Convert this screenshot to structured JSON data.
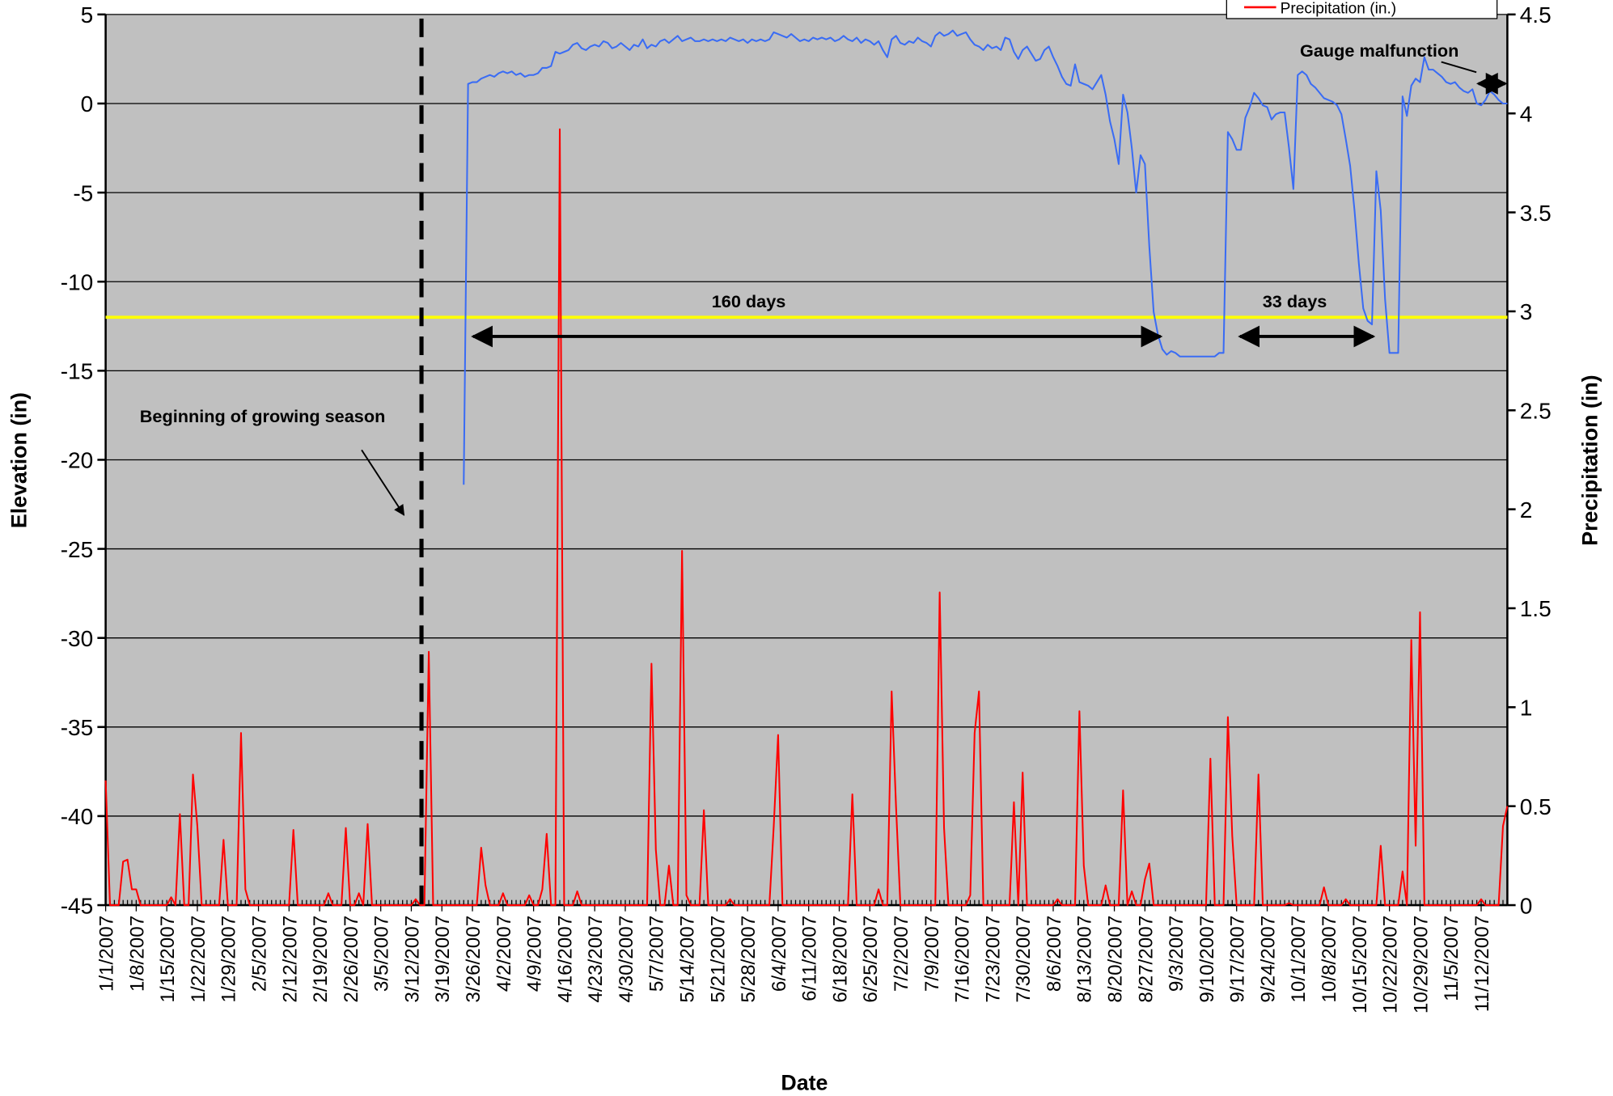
{
  "chart_data": {
    "type": "line",
    "x_label": "Date",
    "y_label": "Elevation (in)",
    "y2_label": "Precipitation (in)",
    "categories": [
      "1/1/2007",
      null,
      null,
      null,
      null,
      null,
      null,
      "1/8/2007",
      null,
      null,
      null,
      null,
      null,
      null,
      "1/15/2007",
      null,
      null,
      null,
      null,
      null,
      null,
      "1/22/2007",
      null,
      null,
      null,
      null,
      null,
      null,
      "1/29/2007",
      null,
      null,
      null,
      null,
      null,
      null,
      "2/5/2007",
      null,
      null,
      null,
      null,
      null,
      null,
      "2/12/2007",
      null,
      null,
      null,
      null,
      null,
      null,
      "2/19/2007",
      null,
      null,
      null,
      null,
      null,
      null,
      "2/26/2007",
      null,
      null,
      null,
      null,
      null,
      null,
      "3/5/2007",
      null,
      null,
      null,
      null,
      null,
      null,
      "3/12/2007",
      null,
      null,
      null,
      null,
      null,
      null,
      "3/19/2007",
      null,
      null,
      null,
      null,
      null,
      null,
      "3/26/2007",
      null,
      null,
      null,
      null,
      null,
      null,
      "4/2/2007",
      null,
      null,
      null,
      null,
      null,
      null,
      "4/9/2007",
      null,
      null,
      null,
      null,
      null,
      null,
      "4/16/2007",
      null,
      null,
      null,
      null,
      null,
      null,
      "4/23/2007",
      null,
      null,
      null,
      null,
      null,
      null,
      "4/30/2007",
      null,
      null,
      null,
      null,
      null,
      null,
      "5/7/2007",
      null,
      null,
      null,
      null,
      null,
      null,
      "5/14/2007",
      null,
      null,
      null,
      null,
      null,
      null,
      "5/21/2007",
      null,
      null,
      null,
      null,
      null,
      null,
      "5/28/2007",
      null,
      null,
      null,
      null,
      null,
      null,
      "6/4/2007",
      null,
      null,
      null,
      null,
      null,
      null,
      "6/11/2007",
      null,
      null,
      null,
      null,
      null,
      null,
      "6/18/2007",
      null,
      null,
      null,
      null,
      null,
      null,
      "6/25/2007",
      null,
      null,
      null,
      null,
      null,
      null,
      "7/2/2007",
      null,
      null,
      null,
      null,
      null,
      null,
      "7/9/2007",
      null,
      null,
      null,
      null,
      null,
      null,
      "7/16/2007",
      null,
      null,
      null,
      null,
      null,
      null,
      "7/23/2007",
      null,
      null,
      null,
      null,
      null,
      null,
      "7/30/2007",
      null,
      null,
      null,
      null,
      null,
      null,
      "8/6/2007",
      null,
      null,
      null,
      null,
      null,
      null,
      "8/13/2007",
      null,
      null,
      null,
      null,
      null,
      null,
      "8/20/2007",
      null,
      null,
      null,
      null,
      null,
      null,
      "8/27/2007",
      null,
      null,
      null,
      null,
      null,
      null,
      "9/3/2007",
      null,
      null,
      null,
      null,
      null,
      null,
      "9/10/2007",
      null,
      null,
      null,
      null,
      null,
      null,
      "9/17/2007",
      null,
      null,
      null,
      null,
      null,
      null,
      "9/24/2007",
      null,
      null,
      null,
      null,
      null,
      null,
      "10/1/2007",
      null,
      null,
      null,
      null,
      null,
      null,
      "10/8/2007",
      null,
      null,
      null,
      null,
      null,
      null,
      "10/15/2007",
      null,
      null,
      null,
      null,
      null,
      null,
      "10/22/2007",
      null,
      null,
      null,
      null,
      null,
      null,
      "10/29/2007",
      null,
      null,
      null,
      null,
      null,
      null,
      "11/5/2007",
      null,
      null,
      null,
      null,
      null,
      null,
      "11/12/2007",
      null,
      null,
      null,
      null,
      null,
      null
    ],
    "series": [
      {
        "color": "#3a6cf4",
        "values": [
          null,
          null,
          null,
          null,
          null,
          null,
          null,
          null,
          null,
          null,
          null,
          null,
          null,
          null,
          null,
          null,
          null,
          null,
          null,
          null,
          null,
          null,
          null,
          null,
          null,
          null,
          null,
          null,
          null,
          null,
          null,
          null,
          null,
          null,
          null,
          null,
          null,
          null,
          null,
          null,
          null,
          null,
          null,
          null,
          null,
          null,
          null,
          null,
          null,
          null,
          null,
          null,
          null,
          null,
          null,
          null,
          null,
          null,
          null,
          null,
          null,
          null,
          null,
          null,
          null,
          null,
          null,
          null,
          null,
          null,
          null,
          null,
          null,
          null,
          null,
          null,
          null,
          null,
          null,
          null,
          null,
          null,
          -21.4,
          1.1,
          1.2,
          1.2,
          1.4,
          1.5,
          1.6,
          1.5,
          1.7,
          1.8,
          1.7,
          1.8,
          1.6,
          1.7,
          1.5,
          1.6,
          1.6,
          1.7,
          2.0,
          2.0,
          2.1,
          2.9,
          2.8,
          2.9,
          3.0,
          3.3,
          3.4,
          3.1,
          3.0,
          3.2,
          3.3,
          3.2,
          3.5,
          3.4,
          3.1,
          3.2,
          3.4,
          3.2,
          3.0,
          3.3,
          3.2,
          3.6,
          3.1,
          3.3,
          3.2,
          3.5,
          3.6,
          3.4,
          3.6,
          3.8,
          3.5,
          3.6,
          3.7,
          3.5,
          3.5,
          3.6,
          3.5,
          3.6,
          3.5,
          3.6,
          3.5,
          3.7,
          3.6,
          3.5,
          3.6,
          3.4,
          3.6,
          3.5,
          3.6,
          3.5,
          3.6,
          4.0,
          3.9,
          3.8,
          3.7,
          3.9,
          3.7,
          3.5,
          3.6,
          3.5,
          3.7,
          3.6,
          3.7,
          3.6,
          3.7,
          3.5,
          3.6,
          3.8,
          3.6,
          3.5,
          3.7,
          3.4,
          3.6,
          3.5,
          3.3,
          3.5,
          3.0,
          2.6,
          3.6,
          3.8,
          3.4,
          3.3,
          3.5,
          3.4,
          3.7,
          3.5,
          3.4,
          3.2,
          3.8,
          4.0,
          3.8,
          3.9,
          4.1,
          3.8,
          3.9,
          4.0,
          3.6,
          3.3,
          3.2,
          3.0,
          3.3,
          3.1,
          3.2,
          3.0,
          3.7,
          3.6,
          2.9,
          2.5,
          3.0,
          3.2,
          2.8,
          2.4,
          2.5,
          3.0,
          3.2,
          2.6,
          2.1,
          1.5,
          1.1,
          1.0,
          2.2,
          1.2,
          1.1,
          1.0,
          0.8,
          1.2,
          1.6,
          0.5,
          -1.0,
          -2.0,
          -3.4,
          0.5,
          -0.5,
          -2.5,
          -5.0,
          -2.9,
          -3.4,
          -8.0,
          -11.7,
          -13.0,
          -13.8,
          -14.1,
          -13.9,
          -14.0,
          -14.2,
          -14.2,
          -14.2,
          -14.2,
          -14.2,
          -14.2,
          -14.2,
          -14.2,
          -14.2,
          -14.0,
          -14.0,
          -1.6,
          -2.0,
          -2.6,
          -2.6,
          -0.8,
          -0.2,
          0.6,
          0.3,
          -0.1,
          -0.2,
          -0.9,
          -0.6,
          -0.5,
          -0.5,
          -2.5,
          -4.8,
          1.6,
          1.8,
          1.6,
          1.1,
          0.9,
          0.6,
          0.3,
          0.2,
          0.1,
          -0.1,
          -0.6,
          -2.0,
          -3.5,
          -6.0,
          -9.0,
          -11.5,
          -12.2,
          -12.4,
          -3.8,
          -6.0,
          -11.0,
          -14.0,
          -14.0,
          -14.0,
          0.4,
          -0.7,
          1.0,
          1.4,
          1.2,
          2.6,
          1.9,
          1.9,
          1.7,
          1.5,
          1.2,
          1.1,
          1.2,
          0.9,
          0.7,
          0.6,
          0.8,
          0.0,
          -0.1,
          0.2,
          0.7,
          0.5,
          0.2,
          0.0,
          0.0
        ]
      },
      {
        "name": "Precipitation (in.)",
        "color": "#ff0000",
        "axis": "y2",
        "values": [
          0.63,
          0,
          0,
          0,
          0.22,
          0.23,
          0.08,
          0.08,
          0,
          0,
          0,
          0,
          0,
          0,
          0,
          0.04,
          0,
          0.46,
          0,
          0,
          0.66,
          0.4,
          0,
          0,
          0,
          0,
          0,
          0.33,
          0,
          0,
          0,
          0.87,
          0.08,
          0,
          0,
          0,
          0,
          0,
          0,
          0,
          0,
          0,
          0,
          0.38,
          0,
          0,
          0,
          0,
          0,
          0,
          0,
          0.06,
          0,
          0,
          0,
          0.39,
          0,
          0,
          0.06,
          0,
          0.41,
          0,
          0,
          0,
          0,
          0,
          0,
          0,
          0,
          0,
          0,
          0.03,
          0,
          0,
          1.28,
          0,
          0,
          0,
          0,
          0,
          0,
          0,
          0,
          0,
          0,
          0,
          0.29,
          0.1,
          0,
          0,
          0,
          0.06,
          0,
          0,
          0,
          0,
          0,
          0.05,
          0,
          0,
          0.08,
          0.36,
          0,
          0,
          3.92,
          0,
          0,
          0,
          0.07,
          0,
          0,
          0,
          0,
          0,
          0,
          0,
          0,
          0,
          0,
          0,
          0,
          0,
          0,
          0,
          0,
          1.22,
          0.28,
          0,
          0,
          0.2,
          0,
          0,
          1.79,
          0.05,
          0,
          0,
          0,
          0.48,
          0,
          0,
          0,
          0,
          0,
          0.03,
          0,
          0,
          0,
          0,
          0,
          0,
          0,
          0,
          0,
          0.4,
          0.86,
          0,
          0,
          0,
          0,
          0,
          0,
          0,
          0,
          0,
          0,
          0,
          0,
          0,
          0,
          0,
          0,
          0.56,
          0,
          0,
          0,
          0,
          0,
          0.08,
          0,
          0,
          1.08,
          0.5,
          0,
          0,
          0,
          0,
          0,
          0,
          0,
          0,
          0,
          1.58,
          0.39,
          0,
          0,
          0,
          0,
          0,
          0.05,
          0.87,
          1.08,
          0,
          0,
          0,
          0,
          0,
          0,
          0,
          0.52,
          0,
          0.67,
          0,
          0,
          0,
          0,
          0,
          0,
          0,
          0.03,
          0,
          0,
          0,
          0,
          0.98,
          0.2,
          0,
          0,
          0,
          0,
          0.1,
          0,
          0,
          0,
          0.58,
          0,
          0.07,
          0,
          0,
          0.13,
          0.21,
          0,
          0,
          0,
          0,
          0,
          0,
          0,
          0,
          0,
          0,
          0,
          0,
          0,
          0.74,
          0,
          0,
          0,
          0.95,
          0.35,
          0,
          0,
          0,
          0,
          0,
          0.66,
          0,
          0,
          0,
          0,
          0,
          0,
          0.01,
          0,
          0,
          0,
          0,
          0,
          0,
          0,
          0.09,
          0,
          0,
          0,
          0,
          0.03,
          0,
          0,
          0,
          0,
          0,
          0,
          0,
          0.3,
          0,
          0,
          0,
          0,
          0.17,
          0,
          1.34,
          0.3,
          1.48,
          0,
          0,
          0,
          0,
          0,
          0,
          0,
          0,
          0,
          0,
          0,
          0,
          0,
          0.03,
          0,
          0,
          0,
          0,
          0.4,
          0.5
        ]
      }
    ],
    "ylim": [
      -45,
      5
    ],
    "yticks": [
      -45,
      -40,
      -35,
      -30,
      -25,
      -20,
      -15,
      -10,
      -5,
      0,
      5
    ],
    "y2lim": [
      0,
      4.5
    ],
    "y2ticks": [
      0,
      0.5,
      1,
      1.5,
      2,
      2.5,
      3,
      3.5,
      4,
      4.5
    ],
    "threshold": -12,
    "threshold_color": "#ffff00",
    "grid": true,
    "plot_background": "#c0c0c0",
    "annotations": [
      "Beginning of growing season",
      "160 days",
      "33 days",
      "Gauge malfunction"
    ]
  }
}
